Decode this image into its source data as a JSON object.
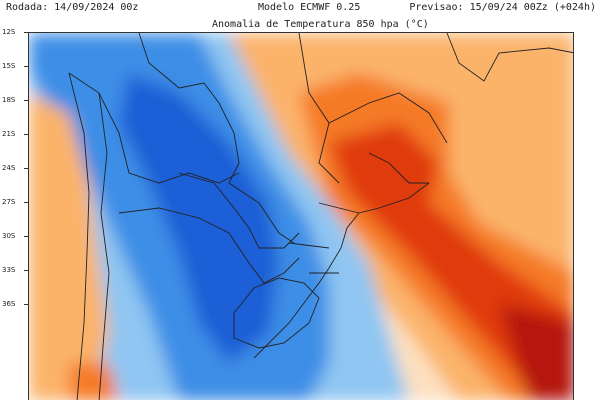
{
  "header": {
    "run": "Rodada: 14/09/2024 00z",
    "model": "Modelo ECMWF 0.25",
    "forecast": "Previsao: 15/09/24 00Zz (+024h)",
    "title": "Anomalia de Temperatura 850 hpa (°C)"
  },
  "latitude_labels": [
    "12S",
    "15S",
    "18S",
    "21S",
    "24S",
    "27S",
    "30S",
    "33S",
    "36S"
  ],
  "colors": {
    "very_cold": "#1a5fd6",
    "cold": "#3d8ee6",
    "cool": "#8fc6f2",
    "neutral": "#ffffff",
    "mild": "#fde0c0",
    "warm": "#fbb36b",
    "hot": "#f57a26",
    "very_hot": "#e03a10",
    "extreme": "#b5150a",
    "borders": "#222222"
  }
}
